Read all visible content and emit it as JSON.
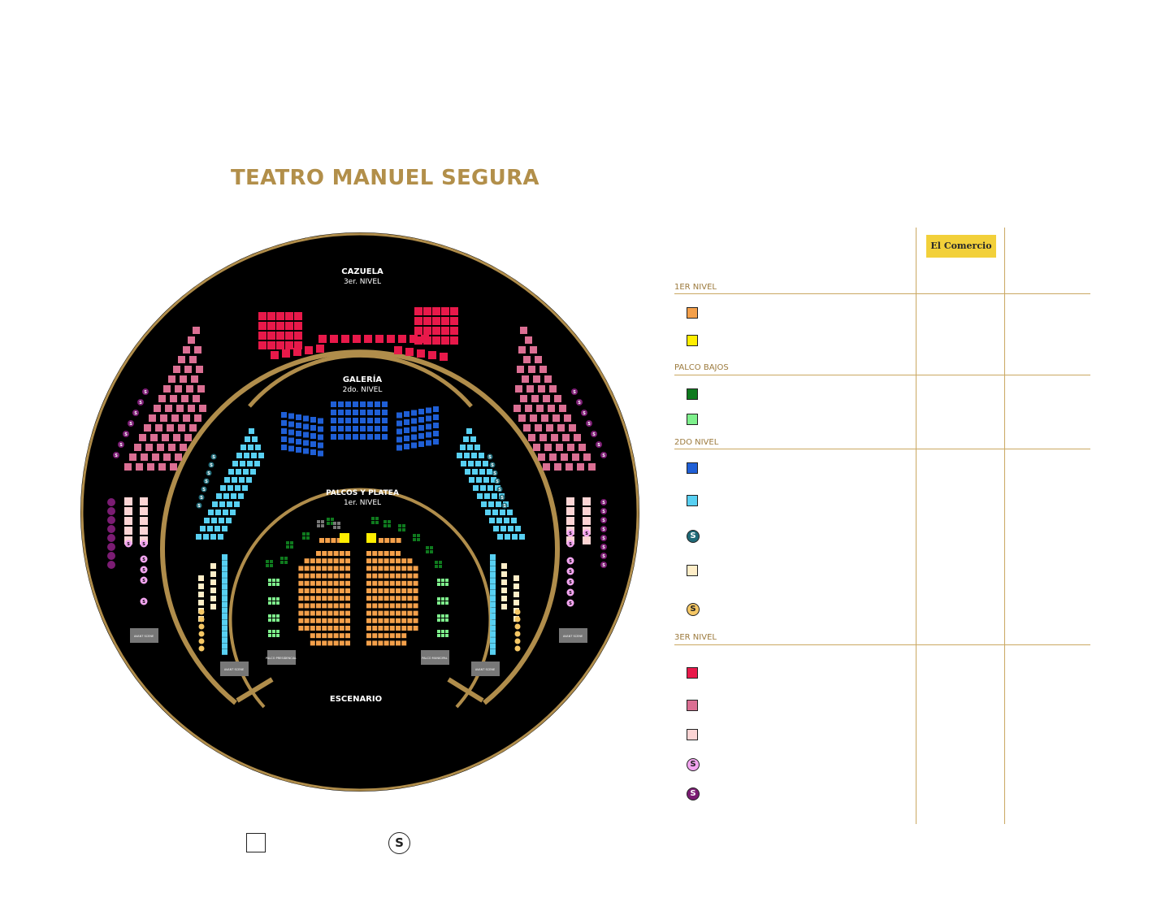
{
  "title": "TEATRO MANUEL SEGURA",
  "brand": "El Comercio",
  "colors": {
    "gold": "#b08d4b",
    "background": "#000000",
    "orange": "#f4a04a",
    "yellow": "#ffee00",
    "dark_green": "#0f7a1e",
    "light_green": "#7ef08c",
    "blue": "#1f5fd6",
    "light_blue": "#58d0f2",
    "teal": "#1f6a78",
    "cream": "#ffeec8",
    "gold_circle": "#f5c765",
    "crimson": "#e8194a",
    "rose": "#db6f93",
    "pale_pink": "#fcd4d4",
    "pink_circle": "#f3a5f0",
    "purple": "#7b1c73",
    "gray": "#777777"
  },
  "map": {
    "cazuela": "CAZUELA",
    "cazuela_sub": "3er. NIVEL",
    "galeria": "GALERÍA",
    "galeria_sub": "2do. NIVEL",
    "palcos": "PALCOS Y PLATEA",
    "palcos_sub": "1er. NIVEL",
    "escenario": "ESCENARIO",
    "avant_scene": "AVANT SCENE",
    "palco_presidencial": "PALCO PRESIDENCIAL",
    "palco_municipal": "PALCO MUNICIPAL"
  },
  "legend": {
    "nivel1": "1ER NIVEL",
    "palco_bajos": "PALCO BAJOS",
    "nivel2": "2DO NIVEL",
    "nivel3": "3ER NIVEL",
    "s_label": "S"
  }
}
